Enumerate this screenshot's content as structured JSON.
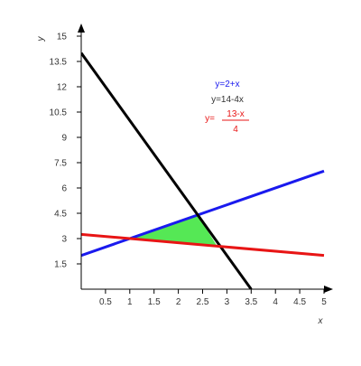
{
  "chart_data": {
    "type": "line",
    "title": "",
    "xlabel": "x",
    "ylabel": "y",
    "xlim": [
      0,
      5
    ],
    "ylim": [
      0,
      15
    ],
    "grid": false,
    "axis_arrows": true,
    "x_ticks": [
      0.5,
      1,
      1.5,
      2,
      2.5,
      3,
      3.5,
      4,
      4.5,
      5
    ],
    "x_tick_labels": [
      "0.5",
      "1",
      "1.5",
      "2",
      "2.5",
      "3",
      "3.5",
      "4",
      "4.5",
      "5"
    ],
    "y_ticks": [
      1.5,
      3,
      4.5,
      6,
      7.5,
      9,
      10.5,
      12,
      13.5,
      15
    ],
    "y_tick_labels": [
      "1.5",
      "3",
      "4.5",
      "6",
      "7.5",
      "9",
      "10.5",
      "12",
      "13.5",
      "15"
    ],
    "series": [
      {
        "name": "y=2+x",
        "color": "#1a1aee",
        "x": [
          0,
          5
        ],
        "y": [
          2,
          7
        ]
      },
      {
        "name": "y=14-4x",
        "color": "#000000",
        "x": [
          0,
          3.5
        ],
        "y": [
          14,
          0
        ]
      },
      {
        "name": "y=(13-x)/4",
        "color": "#e81515",
        "x": [
          0,
          5
        ],
        "y": [
          3.25,
          2
        ]
      }
    ],
    "shaded_region": {
      "color": "#55e855",
      "vertices": [
        [
          1,
          3
        ],
        [
          2.4,
          4.4
        ],
        [
          2.8,
          2.55
        ]
      ]
    },
    "legend": {
      "placement": "top-right",
      "entries": [
        {
          "text": "y=2+x",
          "color": "#1a1aee"
        },
        {
          "text": "y=14-4x",
          "color": "#333333"
        },
        {
          "prefix": "y=",
          "numerator": "13-x",
          "denominator": "4",
          "color": "#e81515"
        }
      ]
    }
  }
}
